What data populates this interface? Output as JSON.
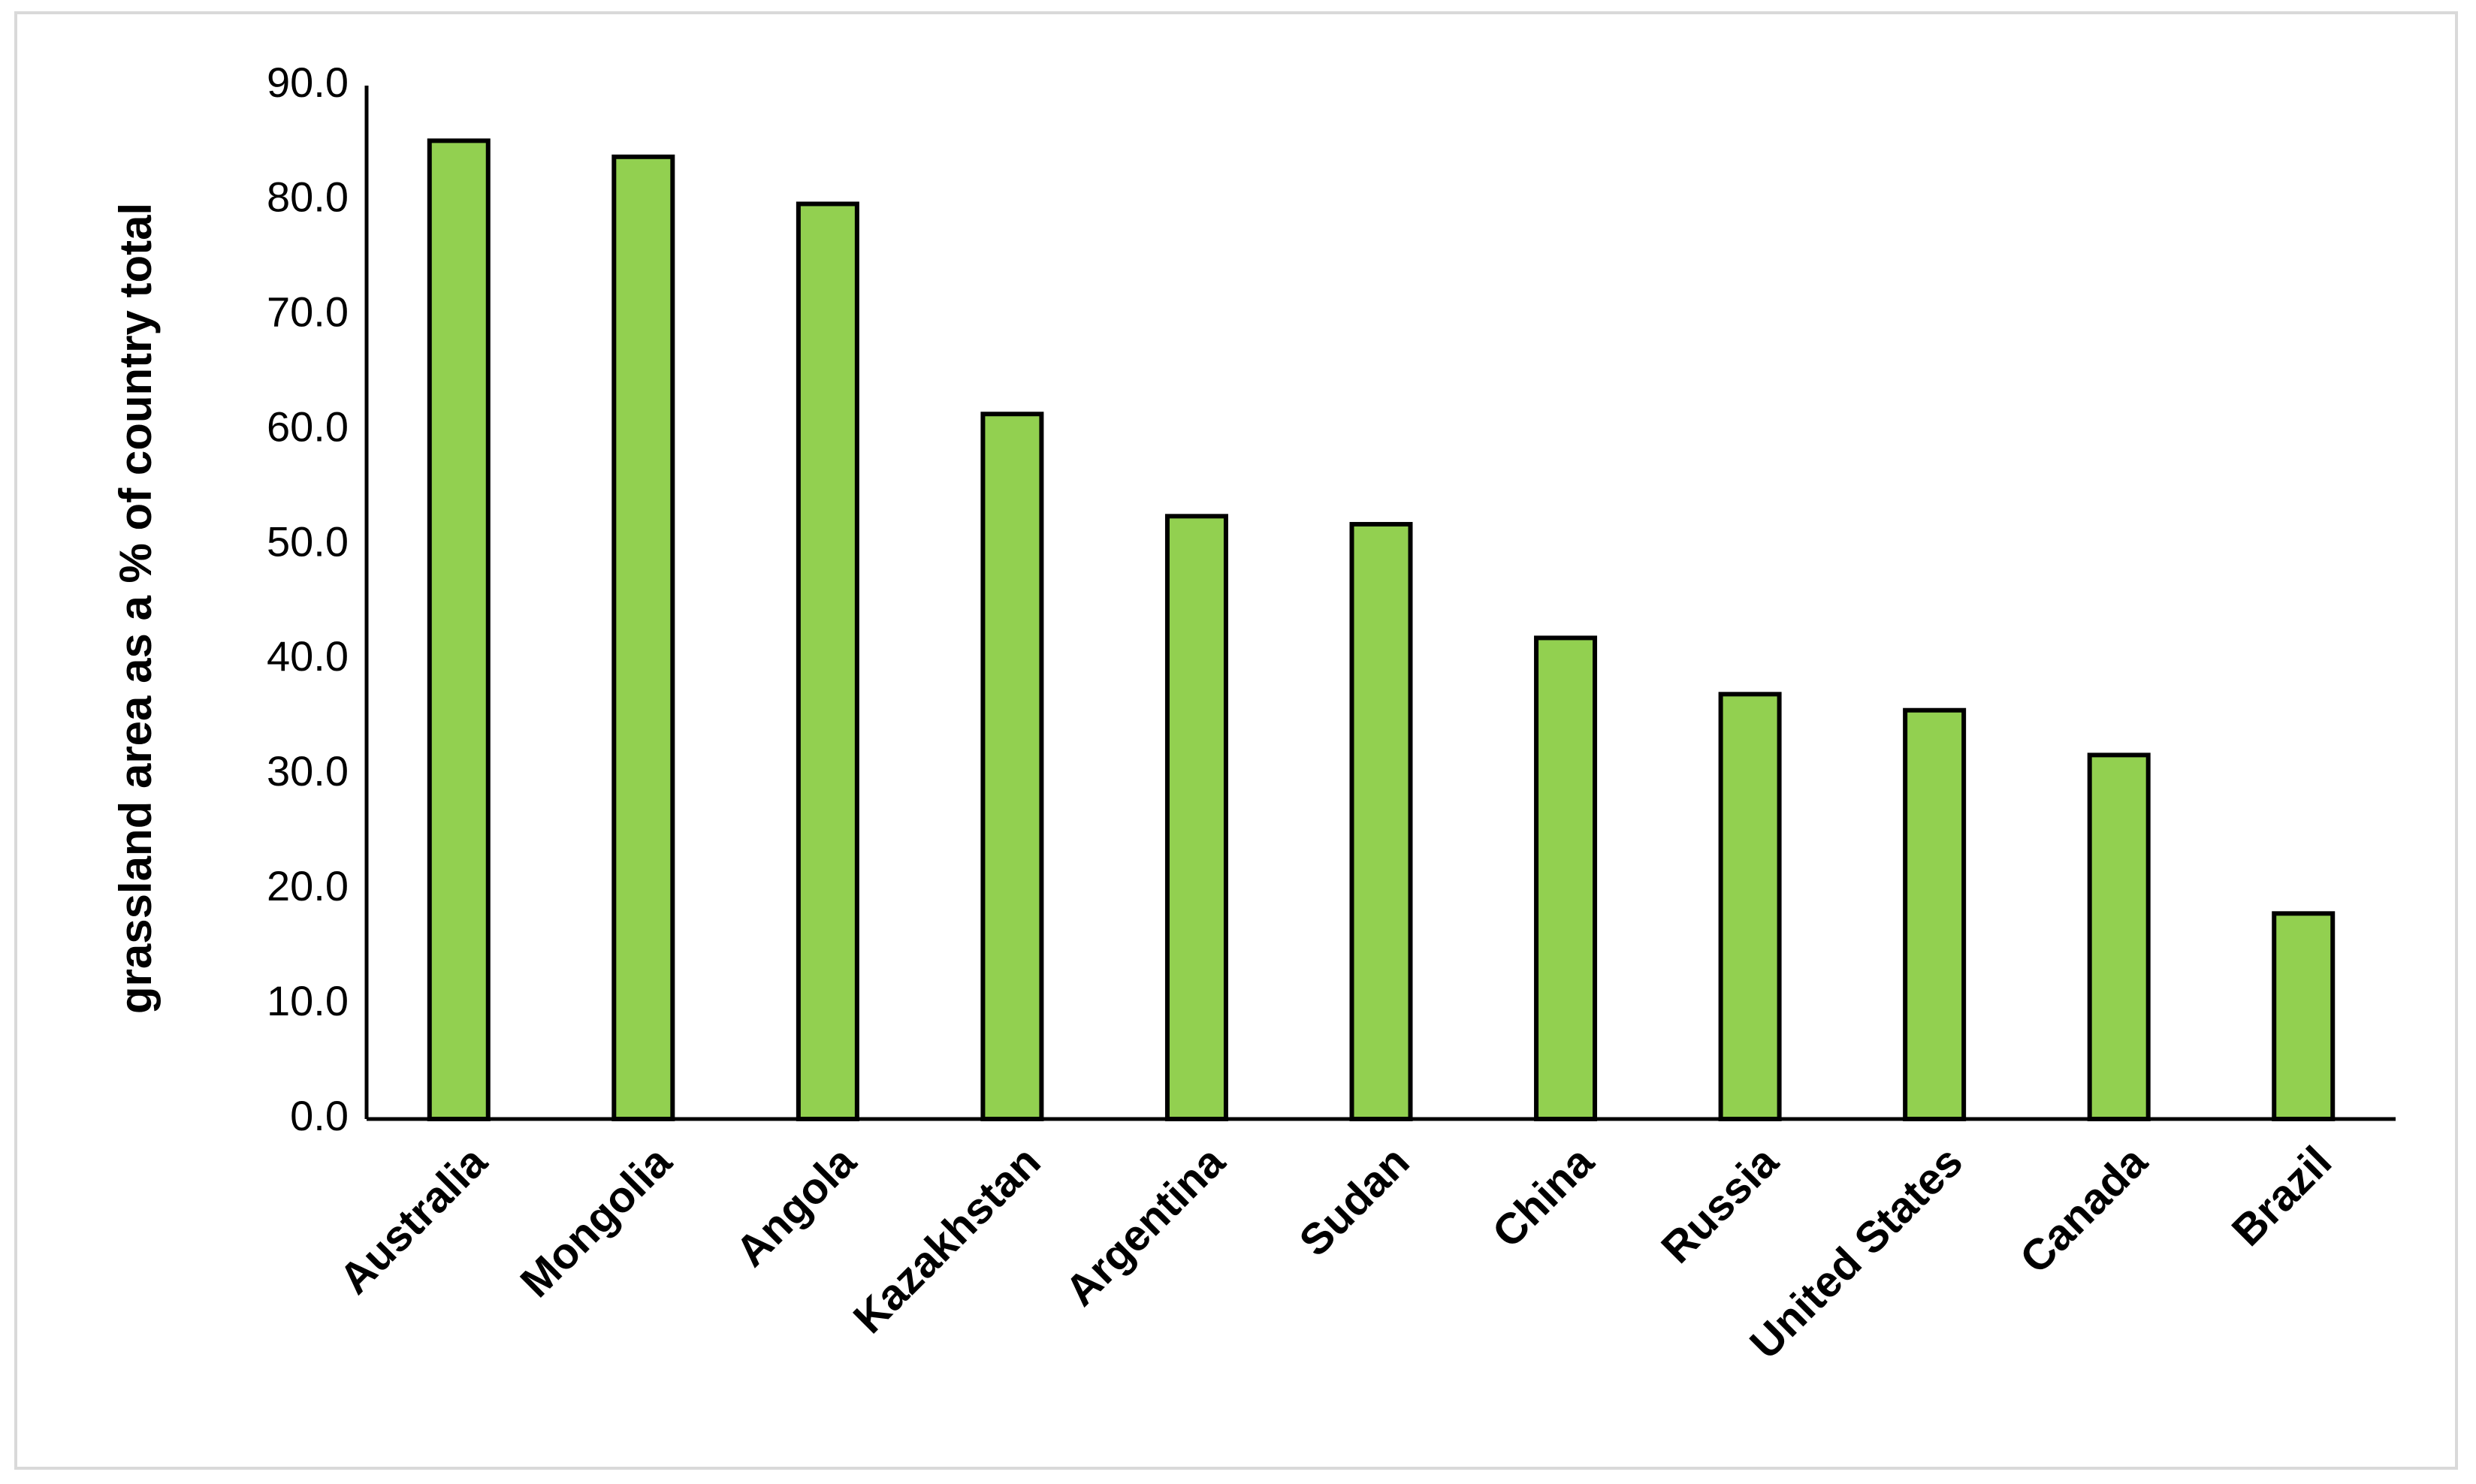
{
  "chart_data": {
    "type": "bar",
    "y_label": "grassland area as a % of country total",
    "categories": [
      "Australia",
      "Mongolia",
      "Angola",
      "Kazakhstan",
      "Argentina",
      "Sudan",
      "China",
      "Russia",
      "United States",
      "Canada",
      "Brazil"
    ],
    "values": [
      85.2,
      83.8,
      79.7,
      61.4,
      52.5,
      51.8,
      41.9,
      37.0,
      35.6,
      31.7,
      17.9
    ],
    "color": "#92d050",
    "edge_color": "#000000",
    "ylim": [
      0,
      90
    ],
    "yticks": [
      {
        "value": 0,
        "label": "0.0"
      },
      {
        "value": 10,
        "label": "10.0"
      },
      {
        "value": 20,
        "label": "20.0"
      },
      {
        "value": 30,
        "label": "30.0"
      },
      {
        "value": 40,
        "label": "40.0"
      },
      {
        "value": 50,
        "label": "50.0"
      },
      {
        "value": 60,
        "label": "60.0"
      },
      {
        "value": 70,
        "label": "70.0"
      },
      {
        "value": 80,
        "label": "80.0"
      },
      {
        "value": 90,
        "label": "90.0"
      }
    ],
    "grid": false
  }
}
